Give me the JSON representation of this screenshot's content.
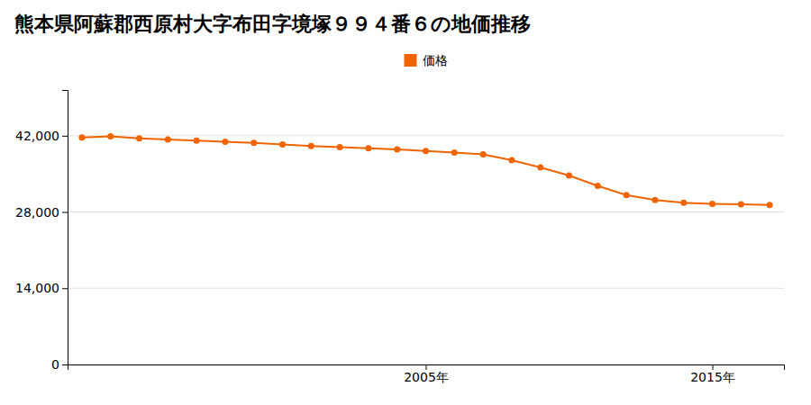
{
  "chart_data": {
    "type": "line",
    "title": "熊本県阿蘇郡西原村大字布田字境塚９９４番６の地価推移",
    "x": [
      1993,
      1994,
      1995,
      1996,
      1997,
      1998,
      1999,
      2000,
      2001,
      2002,
      2003,
      2004,
      2005,
      2006,
      2007,
      2008,
      2009,
      2010,
      2011,
      2012,
      2013,
      2014,
      2015,
      2016,
      2017
    ],
    "series": [
      {
        "name": "価格",
        "color": "#f06400",
        "marker": "circle",
        "line_style": "solid",
        "values": [
          41700,
          41900,
          41500,
          41300,
          41100,
          40900,
          40700,
          40400,
          40100,
          39900,
          39700,
          39500,
          39200,
          38900,
          38600,
          37500,
          36200,
          34700,
          32800,
          31100,
          30200,
          29700,
          29500,
          29400,
          29300
        ]
      }
    ],
    "xlim": [
      1992.5,
      2017.5
    ],
    "xticks": [
      {
        "value": 2005,
        "label": "2005年"
      },
      {
        "value": 2015,
        "label": "2015年"
      }
    ],
    "ylim": [
      0,
      50400
    ],
    "yticks": [
      0,
      {
        "value": 14000,
        "label": "14,000"
      },
      {
        "value": 28000,
        "label": "28,000"
      },
      {
        "value": 42000,
        "label": "42,000"
      }
    ],
    "grid": "y",
    "legend": "top"
  }
}
